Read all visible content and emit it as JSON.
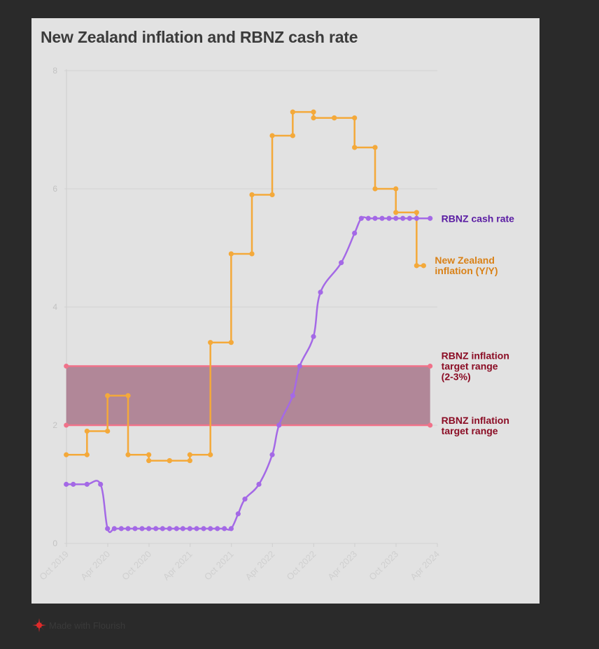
{
  "title": "New Zealand inflation and RBNZ cash rate",
  "footer": {
    "text": "Made with Flourish",
    "logo": "flourish-logo"
  },
  "colors": {
    "inflation": "#f4a93a",
    "cash_rate": "#a469e6",
    "target": "#f0728a",
    "target_fill": "#a0687f",
    "cash_label": "#5a1ca3",
    "inflation_label": "#d98117",
    "target_label": "#8b0d25"
  },
  "chart_data": {
    "type": "line",
    "title": "New Zealand inflation and RBNZ cash rate",
    "ylim": [
      0,
      8
    ],
    "y_ticks": [
      "0",
      "2",
      "4",
      "6",
      "8"
    ],
    "xlim": [
      "2019-10",
      "2024-04"
    ],
    "x_ticks": [
      "Oct 2019",
      "Apr 2020",
      "Oct 2020",
      "Apr 2021",
      "Oct 2021",
      "Apr 2022",
      "Oct 2022",
      "Apr 2023",
      "Oct 2023",
      "Apr 2024"
    ],
    "x_tick_values": [
      "2019-10",
      "2020-04",
      "2020-10",
      "2021-04",
      "2021-10",
      "2022-04",
      "2022-10",
      "2023-04",
      "2023-10",
      "2024-04"
    ],
    "grid": true,
    "series": [
      {
        "name": "New Zealand inflation (Y/Y)",
        "label_lines": [
          "New Zealand",
          "inflation (Y/Y)"
        ],
        "shape": "step",
        "points": [
          [
            "2019-09-30",
            1.5
          ],
          [
            "2019-12-31",
            1.9
          ],
          [
            "2020-03-31",
            2.5
          ],
          [
            "2020-06-30",
            1.5
          ],
          [
            "2020-09-30",
            1.4
          ],
          [
            "2020-12-31",
            1.4
          ],
          [
            "2021-03-31",
            1.5
          ],
          [
            "2021-06-30",
            3.4
          ],
          [
            "2021-09-30",
            4.9
          ],
          [
            "2021-12-31",
            5.9
          ],
          [
            "2022-03-31",
            6.9
          ],
          [
            "2022-06-30",
            7.3
          ],
          [
            "2022-09-30",
            7.2
          ],
          [
            "2022-12-31",
            7.2
          ],
          [
            "2023-03-31",
            6.7
          ],
          [
            "2023-06-30",
            6.0
          ],
          [
            "2023-09-30",
            5.6
          ],
          [
            "2023-12-31",
            4.7
          ]
        ],
        "extend_to": "2024-01-31"
      },
      {
        "name": "RBNZ cash rate",
        "label_lines": [
          "RBNZ cash rate"
        ],
        "shape": "curve",
        "points": [
          [
            "2019-09-30",
            1.0
          ],
          [
            "2019-10-31",
            1.0
          ],
          [
            "2019-12-31",
            1.0
          ],
          [
            "2020-02-29",
            1.0
          ],
          [
            "2020-03-31",
            0.25
          ],
          [
            "2020-04-30",
            0.25
          ],
          [
            "2020-05-31",
            0.25
          ],
          [
            "2020-06-30",
            0.25
          ],
          [
            "2020-07-31",
            0.25
          ],
          [
            "2020-08-31",
            0.25
          ],
          [
            "2020-09-30",
            0.25
          ],
          [
            "2020-10-31",
            0.25
          ],
          [
            "2020-11-30",
            0.25
          ],
          [
            "2020-12-31",
            0.25
          ],
          [
            "2021-01-31",
            0.25
          ],
          [
            "2021-02-28",
            0.25
          ],
          [
            "2021-03-31",
            0.25
          ],
          [
            "2021-04-30",
            0.25
          ],
          [
            "2021-05-31",
            0.25
          ],
          [
            "2021-06-30",
            0.25
          ],
          [
            "2021-07-31",
            0.25
          ],
          [
            "2021-08-31",
            0.25
          ],
          [
            "2021-09-30",
            0.25
          ],
          [
            "2021-10-31",
            0.5
          ],
          [
            "2021-11-30",
            0.75
          ],
          [
            "2022-01-31",
            1.0
          ],
          [
            "2022-03-31",
            1.5
          ],
          [
            "2022-04-30",
            2.0
          ],
          [
            "2022-06-30",
            2.5
          ],
          [
            "2022-07-31",
            3.0
          ],
          [
            "2022-09-30",
            3.5
          ],
          [
            "2022-10-31",
            4.25
          ],
          [
            "2023-01-31",
            4.75
          ],
          [
            "2023-03-31",
            5.25
          ],
          [
            "2023-04-30",
            5.5
          ],
          [
            "2023-05-31",
            5.5
          ],
          [
            "2023-06-30",
            5.5
          ],
          [
            "2023-07-31",
            5.5
          ],
          [
            "2023-08-31",
            5.5
          ],
          [
            "2023-09-30",
            5.5
          ],
          [
            "2023-10-31",
            5.5
          ],
          [
            "2023-11-30",
            5.5
          ],
          [
            "2023-12-31",
            5.5
          ],
          [
            "2024-02-29",
            5.5
          ]
        ]
      }
    ],
    "target_range": {
      "lower": 2,
      "upper": 3,
      "from": "2019-09-30",
      "to": "2024-02-29",
      "upper_label_lines": [
        "RBNZ inflation",
        "target range",
        "(2-3%)"
      ],
      "lower_label_lines": [
        "RBNZ inflation",
        "target range"
      ]
    }
  }
}
